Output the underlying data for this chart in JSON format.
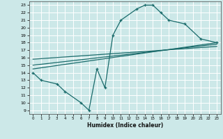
{
  "xlabel": "Humidex (Indice chaleur)",
  "bg_color": "#cce8e8",
  "grid_color": "#ffffff",
  "line_color": "#1a6b6b",
  "xlim": [
    -0.5,
    23.5
  ],
  "ylim": [
    8.5,
    23.5
  ],
  "yticks": [
    9,
    10,
    11,
    12,
    13,
    14,
    15,
    16,
    17,
    18,
    19,
    20,
    21,
    22,
    23
  ],
  "xticks": [
    0,
    1,
    2,
    3,
    4,
    5,
    6,
    7,
    8,
    9,
    10,
    11,
    12,
    13,
    14,
    15,
    16,
    17,
    18,
    19,
    20,
    21,
    22,
    23
  ],
  "curve1_x": [
    0,
    1,
    3,
    4,
    6,
    7,
    8,
    9,
    10,
    11,
    13,
    14,
    15,
    16,
    17,
    19,
    21,
    23
  ],
  "curve1_y": [
    14.0,
    13.0,
    12.5,
    11.5,
    10.0,
    9.0,
    14.5,
    12.0,
    19.0,
    21.0,
    22.5,
    23.0,
    23.0,
    22.0,
    21.0,
    20.5,
    18.5,
    18.0
  ],
  "line2_x": [
    0,
    23
  ],
  "line2_y": [
    14.5,
    18.0
  ],
  "line3_x": [
    0,
    23
  ],
  "line3_y": [
    15.0,
    17.8
  ],
  "line4_x": [
    0,
    23
  ],
  "line4_y": [
    15.8,
    17.5
  ]
}
